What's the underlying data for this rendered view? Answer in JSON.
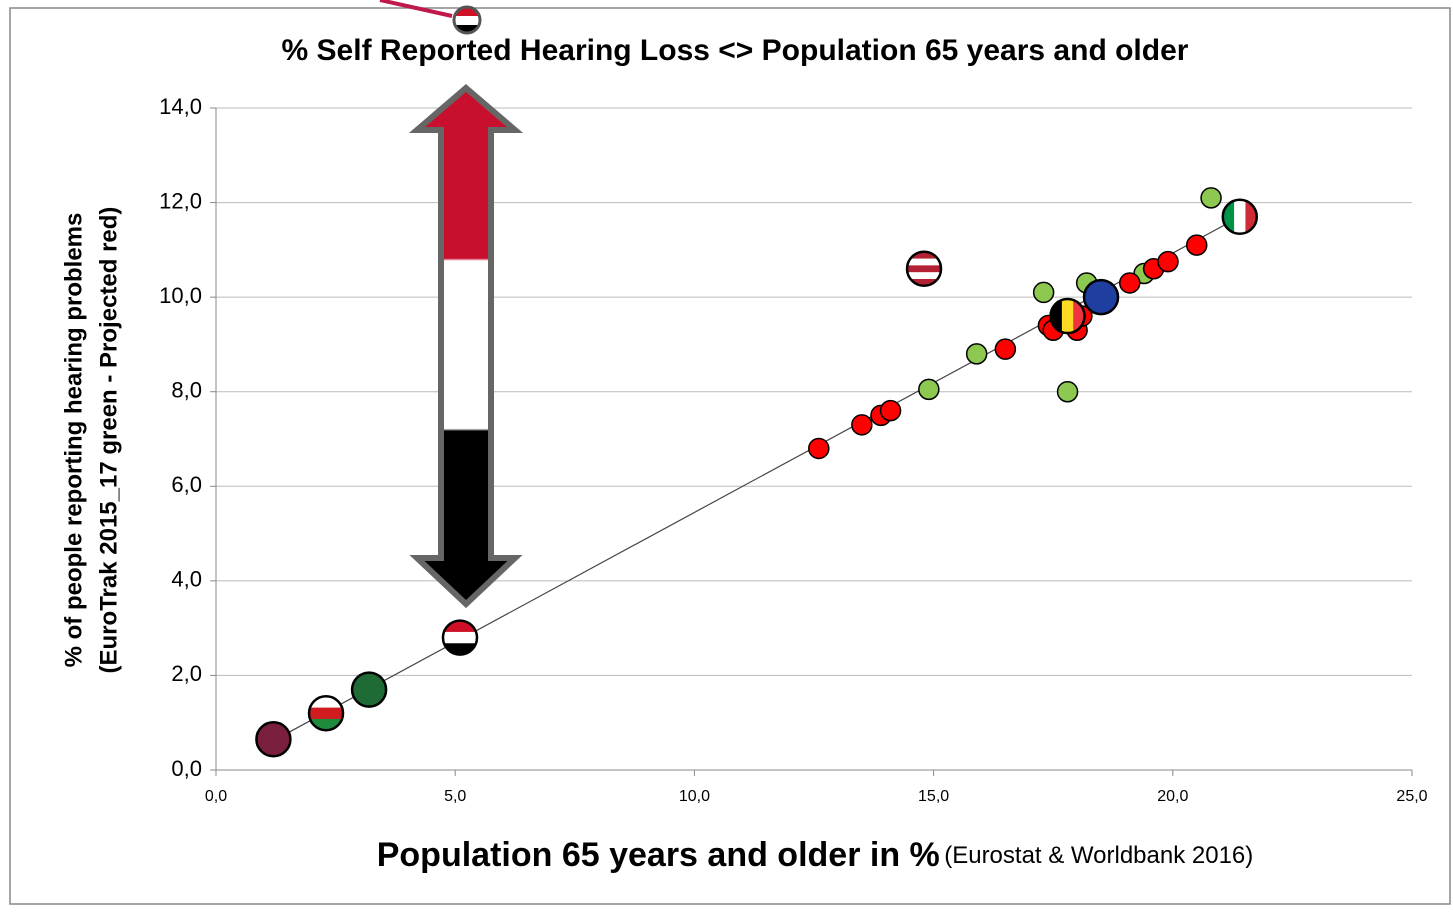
{
  "chart_data": {
    "type": "scatter",
    "title": "% Self Reported Hearing Loss <> Population 65 years and older",
    "y_label": [
      "% of people reporting hearing problems",
      "(EuroTrak 2015_17  green - Projected red)"
    ],
    "x_label": "Population 65 years and older in %",
    "x_label_source": "(Eurostat & Worldbank 2016)",
    "xlim": [
      0,
      25
    ],
    "xticks": [
      {
        "value": 0,
        "label": "0,0"
      },
      {
        "value": 5,
        "label": "5,0"
      },
      {
        "value": 10,
        "label": "10,0"
      },
      {
        "value": 15,
        "label": "15,0"
      },
      {
        "value": 20,
        "label": "20,0"
      },
      {
        "value": 25,
        "label": "25,0"
      }
    ],
    "ylim": [
      0,
      14
    ],
    "yticks": [
      {
        "value": 0,
        "label": "0,0"
      },
      {
        "value": 2,
        "label": "2,0"
      },
      {
        "value": 4,
        "label": "4,0"
      },
      {
        "value": 6,
        "label": "6,0"
      },
      {
        "value": 8,
        "label": "8,0"
      },
      {
        "value": 10,
        "label": "10,0"
      },
      {
        "value": 12,
        "label": "12,0"
      },
      {
        "value": 14,
        "label": "14,0"
      }
    ],
    "grid": true,
    "trendline": {
      "color": "#444444",
      "x": [
        1.2,
        21.4
      ],
      "y": [
        0.62,
        11.7
      ]
    },
    "series": [
      {
        "color": "#8dc850",
        "x": [
          14.9,
          15.9,
          17.3,
          18.2,
          17.8,
          19.4,
          20.8
        ],
        "y": [
          8.05,
          8.8,
          10.1,
          10.3,
          8.0,
          10.5,
          12.1
        ]
      },
      {
        "color": "#ff0000",
        "x": [
          12.6,
          13.5,
          13.9,
          14.1,
          16.5,
          17.4,
          17.5,
          17.7,
          18.0,
          18.1,
          19.1,
          19.6,
          19.9,
          20.5
        ],
        "y": [
          6.8,
          7.3,
          7.5,
          7.6,
          8.9,
          9.4,
          9.3,
          9.5,
          9.3,
          9.6,
          10.3,
          10.6,
          10.75,
          11.1
        ]
      }
    ],
    "flags": [
      {
        "x": 1.2,
        "y": 0.65,
        "stripes": [
          "#7a1f3d"
        ],
        "vertical": false
      },
      {
        "x": 2.3,
        "y": 1.2,
        "stripes": [
          "#ffffff",
          "#d01c1f",
          "#1e8a3c"
        ],
        "vertical": false
      },
      {
        "x": 3.2,
        "y": 1.7,
        "stripes": [
          "#1e6b35"
        ],
        "vertical": false
      },
      {
        "x": 5.1,
        "y": 2.8,
        "stripes": [
          "#ce1126",
          "#ffffff",
          "#000000"
        ],
        "vertical": false
      },
      {
        "x": 14.8,
        "y": 10.6,
        "stripes": [
          "#b22234",
          "#ffffff",
          "#b22234",
          "#ffffff",
          "#b22234"
        ],
        "vertical": false
      },
      {
        "x": 17.8,
        "y": 9.6,
        "stripes": [
          "#000000",
          "#fdda24",
          "#ef3340"
        ],
        "vertical": true
      },
      {
        "x": 18.5,
        "y": 10.0,
        "stripes": [
          "#1f3fa0"
        ],
        "vertical": false
      },
      {
        "x": 21.4,
        "y": 11.7,
        "stripes": [
          "#009246",
          "#ffffff",
          "#ce2b37"
        ],
        "vertical": true
      }
    ]
  }
}
